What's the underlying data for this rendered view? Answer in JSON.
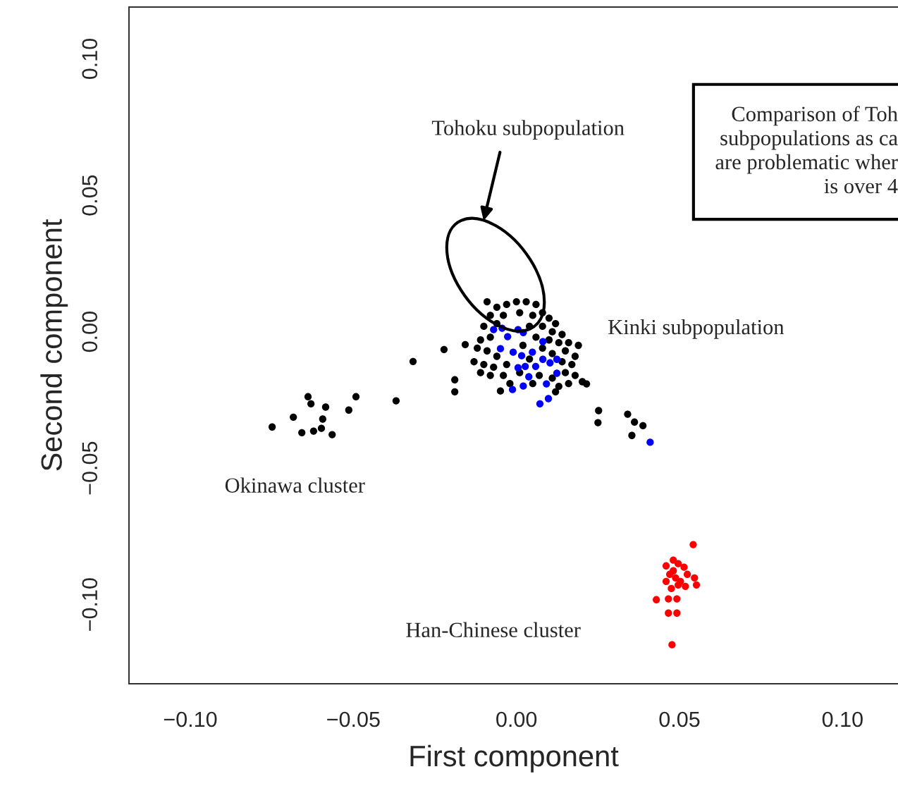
{
  "chart_data": {
    "type": "scatter",
    "xlabel": "First component",
    "ylabel": "Second component",
    "xlim": [
      -0.1188,
      0.117
    ],
    "ylim": [
      -0.129,
      0.119
    ],
    "xticks": [
      {
        "value": -0.1,
        "label": "−0.10"
      },
      {
        "value": -0.05,
        "label": "−0.05"
      },
      {
        "value": 0,
        "label": "0.00"
      },
      {
        "value": 0.05,
        "label": "0.05"
      },
      {
        "value": 0.1,
        "label": "0.10"
      }
    ],
    "yticks": [
      {
        "value": -0.1,
        "label": "−0.10"
      },
      {
        "value": -0.05,
        "label": "−0.05"
      },
      {
        "value": 0,
        "label": "0.00"
      },
      {
        "value": 0.05,
        "label": "0.05"
      },
      {
        "value": 0.1,
        "label": "0.10"
      }
    ],
    "marker": "circle",
    "grid": false,
    "legend": false,
    "series": [
      {
        "color": "#000000",
        "x": [
          -0.0749,
          -0.0684,
          -0.0639,
          -0.063,
          -0.0658,
          -0.0622,
          -0.0598,
          -0.0585,
          -0.0594,
          -0.0565,
          -0.0514,
          -0.0492,
          -0.0369,
          -0.0317,
          -0.0222,
          -0.0157,
          -0.0189,
          -0.0189,
          0.0252,
          0.025,
          0.0341,
          0.0354,
          0.0362,
          0.0388,
          0.0202,
          0.0215,
          -0.0049,
          -0.009,
          -0.006,
          -0.003,
          0.0,
          0.003,
          0.006,
          0.008,
          -0.008,
          -0.004,
          0.001,
          0.005,
          0.01,
          0.012,
          -0.01,
          -0.006,
          0.004,
          0.008,
          0.011,
          0.014,
          -0.011,
          -0.008,
          0.006,
          0.01,
          0.013,
          0.016,
          0.019,
          -0.012,
          -0.009,
          -0.006,
          0.002,
          0.008,
          0.011,
          0.015,
          0.018,
          -0.013,
          -0.01,
          -0.007,
          -0.003,
          0.004,
          0.014,
          0.017,
          -0.011,
          -0.008,
          -0.004,
          0.001,
          0.007,
          0.011,
          0.015,
          0.018,
          -0.002,
          0.005,
          0.013,
          0.012,
          0.016
        ],
        "values": [
          -0.0349,
          -0.0313,
          -0.0238,
          -0.0264,
          -0.037,
          -0.0364,
          -0.0354,
          -0.0276,
          -0.032,
          -0.0377,
          -0.0287,
          -0.0238,
          -0.0253,
          -0.0109,
          -0.0065,
          -0.0047,
          -0.0176,
          -0.022,
          -0.0289,
          -0.0333,
          -0.0302,
          -0.038,
          -0.0331,
          -0.0344,
          -0.0183,
          -0.0191,
          -0.0217,
          0.011,
          0.009,
          0.01,
          0.011,
          0.011,
          0.01,
          0.007,
          0.006,
          0.006,
          0.007,
          0.006,
          0.005,
          0.003,
          0.002,
          0.003,
          0.002,
          0.002,
          0.0,
          -0.001,
          -0.003,
          -0.002,
          -0.002,
          -0.003,
          -0.004,
          -0.004,
          -0.005,
          -0.006,
          -0.007,
          -0.009,
          -0.005,
          -0.006,
          -0.008,
          -0.007,
          -0.009,
          -0.011,
          -0.012,
          -0.013,
          -0.012,
          -0.01,
          -0.011,
          -0.012,
          -0.015,
          -0.016,
          -0.016,
          -0.015,
          -0.016,
          -0.017,
          -0.015,
          -0.016,
          -0.019,
          -0.019,
          -0.02,
          -0.022,
          -0.019
        ]
      },
      {
        "color": "#0000ff",
        "x": [
          -0.007,
          -0.0044,
          0.0005,
          0.0021,
          -0.0027,
          -0.0049,
          -0.001,
          0.0016,
          0.0049,
          0.0081,
          0.0081,
          0.0059,
          0.0103,
          0.0124,
          0.0027,
          0.0005,
          0.0038,
          0.0092,
          0.0124,
          -0.0012,
          0.0021,
          0.0072,
          0.0098,
          0.041
        ],
        "values": [
          0.0008,
          0.0013,
          0.0008,
          -0.0003,
          -0.0018,
          -0.0062,
          -0.0075,
          -0.0088,
          -0.0075,
          -0.0036,
          -0.0101,
          -0.0127,
          -0.0114,
          -0.0101,
          -0.0127,
          -0.0132,
          -0.0165,
          -0.0191,
          -0.0152,
          -0.0212,
          -0.0199,
          -0.0264,
          -0.0245,
          -0.0405
        ]
      },
      {
        "color": "#ff0000",
        "x": [
          0.0542,
          0.0459,
          0.0481,
          0.0496,
          0.0514,
          0.047,
          0.0488,
          0.0503,
          0.0524,
          0.0546,
          0.0552,
          0.0475,
          0.0496,
          0.0518,
          0.0429,
          0.0466,
          0.0492,
          0.0466,
          0.0492,
          0.0477,
          0.0459,
          0.0481
        ],
        "values": [
          -0.078,
          -0.0858,
          -0.0837,
          -0.085,
          -0.0863,
          -0.0889,
          -0.0902,
          -0.0915,
          -0.0889,
          -0.0902,
          -0.0928,
          -0.0941,
          -0.0928,
          -0.0933,
          -0.0982,
          -0.0979,
          -0.0979,
          -0.1031,
          -0.1031,
          -0.1147,
          -0.0915,
          -0.0876
        ]
      }
    ],
    "annotations": [
      "Tohoku subpopulation",
      "Kinki subpopulation",
      "Okinawa cluster",
      "Han-Chinese cluster",
      "Comparison of Toh\nsubpopulations as ca\nare problematic wher\nis over 4"
    ]
  }
}
